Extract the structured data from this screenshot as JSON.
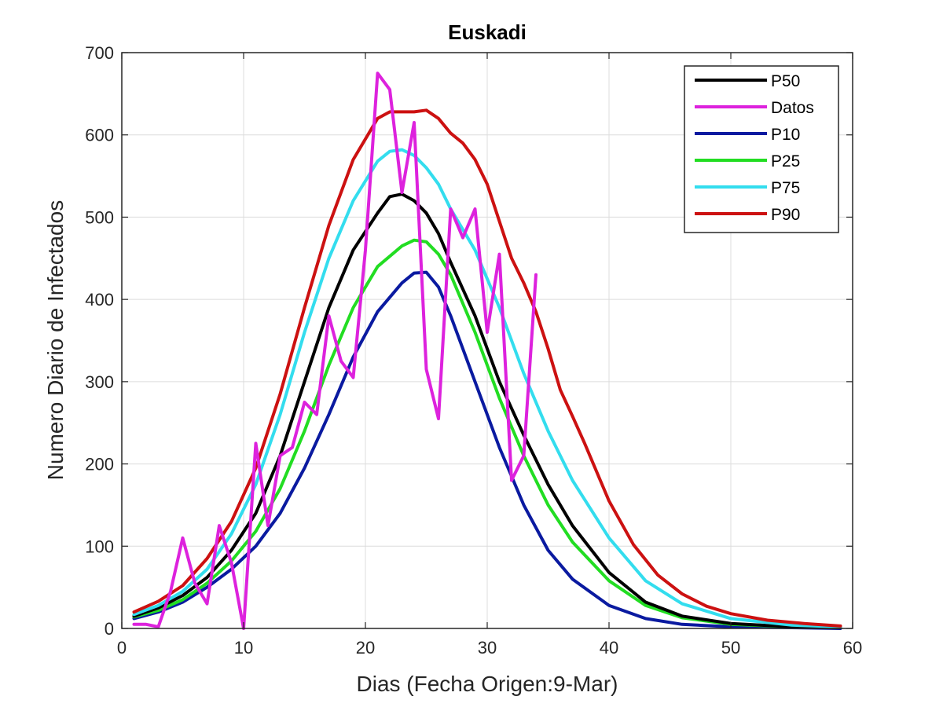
{
  "chart_data": {
    "type": "line",
    "title": "Euskadi",
    "xlabel": "Dias (Fecha Origen:9-Mar)",
    "ylabel": "Numero Diario de Infectados",
    "xlim": [
      0,
      60
    ],
    "ylim": [
      0,
      700
    ],
    "xticks": [
      "0",
      "10",
      "20",
      "30",
      "40",
      "50",
      "60"
    ],
    "yticks": [
      "0",
      "100",
      "200",
      "300",
      "400",
      "500",
      "600",
      "700"
    ],
    "grid": true,
    "legend_position": "top-right",
    "series": [
      {
        "name": "P50",
        "color": "#000000",
        "x": [
          1,
          3,
          5,
          7,
          9,
          11,
          13,
          15,
          17,
          19,
          21,
          22,
          23,
          24,
          25,
          26,
          27,
          29,
          31,
          33,
          35,
          37,
          40,
          43,
          46,
          50,
          55,
          59
        ],
        "y": [
          15,
          25,
          40,
          62,
          95,
          140,
          210,
          300,
          390,
          460,
          505,
          525,
          528,
          520,
          505,
          480,
          445,
          380,
          300,
          235,
          175,
          125,
          68,
          32,
          15,
          6,
          2,
          1
        ]
      },
      {
        "name": "Datos",
        "color": "#dd22dd",
        "x": [
          1,
          2,
          3,
          4,
          5,
          6,
          7,
          8,
          9,
          10,
          11,
          12,
          13,
          14,
          15,
          16,
          17,
          18,
          19,
          20,
          21,
          22,
          23,
          24,
          25,
          26,
          27,
          28,
          29,
          30,
          31,
          32,
          33,
          34
        ],
        "y": [
          5,
          5,
          2,
          45,
          110,
          55,
          30,
          125,
          80,
          0,
          225,
          125,
          210,
          220,
          275,
          260,
          380,
          325,
          305,
          460,
          675,
          655,
          530,
          615,
          315,
          255,
          510,
          475,
          510,
          360,
          455,
          180,
          210,
          430
        ]
      },
      {
        "name": "P10",
        "color": "#0a1aa0",
        "x": [
          1,
          3,
          5,
          7,
          9,
          11,
          13,
          15,
          17,
          19,
          21,
          23,
          24,
          25,
          26,
          27,
          29,
          31,
          33,
          35,
          37,
          40,
          43,
          46,
          50,
          55,
          59
        ],
        "y": [
          12,
          20,
          32,
          50,
          72,
          100,
          140,
          195,
          260,
          330,
          385,
          420,
          432,
          433,
          415,
          380,
          300,
          220,
          150,
          95,
          60,
          28,
          12,
          5,
          2,
          1,
          0
        ]
      },
      {
        "name": "P25",
        "color": "#22dd22",
        "x": [
          1,
          3,
          5,
          7,
          9,
          11,
          13,
          15,
          17,
          19,
          21,
          23,
          24,
          25,
          26,
          27,
          29,
          31,
          33,
          35,
          37,
          40,
          43,
          46,
          50,
          55,
          59
        ],
        "y": [
          14,
          22,
          35,
          55,
          82,
          118,
          170,
          240,
          320,
          390,
          440,
          465,
          472,
          470,
          455,
          430,
          360,
          280,
          210,
          150,
          105,
          58,
          28,
          13,
          5,
          2,
          1
        ]
      },
      {
        "name": "P75",
        "color": "#33ddee",
        "x": [
          1,
          3,
          5,
          7,
          9,
          11,
          13,
          15,
          17,
          19,
          21,
          22,
          23,
          24,
          25,
          26,
          27,
          29,
          31,
          33,
          35,
          37,
          40,
          43,
          46,
          50,
          55,
          59
        ],
        "y": [
          17,
          28,
          45,
          72,
          115,
          175,
          260,
          360,
          450,
          520,
          568,
          580,
          582,
          575,
          560,
          540,
          510,
          460,
          390,
          310,
          240,
          180,
          110,
          58,
          30,
          12,
          4,
          2
        ]
      },
      {
        "name": "P90",
        "color": "#cc1111",
        "x": [
          1,
          3,
          5,
          7,
          9,
          11,
          13,
          15,
          17,
          19,
          21,
          22,
          23,
          24,
          25,
          26,
          27,
          28,
          29,
          30,
          31,
          32,
          33,
          34,
          35,
          36,
          37,
          38,
          40,
          42,
          44,
          46,
          48,
          50,
          53,
          56,
          59
        ],
        "y": [
          20,
          33,
          52,
          85,
          130,
          195,
          285,
          390,
          490,
          570,
          620,
          628,
          628,
          628,
          630,
          620,
          602,
          590,
          570,
          540,
          495,
          450,
          420,
          385,
          340,
          290,
          258,
          225,
          155,
          102,
          65,
          42,
          27,
          18,
          10,
          6,
          3
        ]
      }
    ]
  }
}
